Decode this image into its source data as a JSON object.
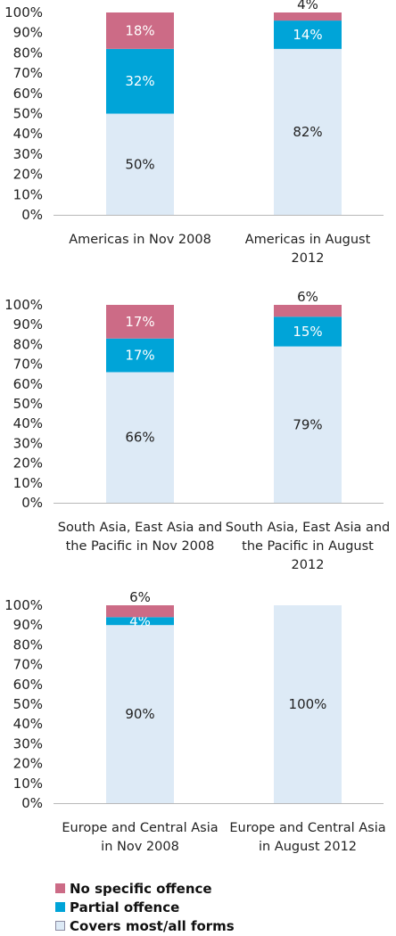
{
  "colors": {
    "no_specific": "#cc6b86",
    "partial": "#00a4d8",
    "covers": "#ddeaf6",
    "covers_border": "#8a8aa0",
    "label_dark": "#222222",
    "label_light": "#ffffff"
  },
  "legend": [
    {
      "label": "No specific offence",
      "color_key": "no_specific"
    },
    {
      "label": "Partial offence",
      "color_key": "partial"
    },
    {
      "label": "Covers most/all forms",
      "color_key": "covers"
    }
  ],
  "chart_data": [
    {
      "type": "bar",
      "stacked": true,
      "ylim": [
        0,
        100
      ],
      "yticks": [
        "0%",
        "10%",
        "20%",
        "30%",
        "40%",
        "50%",
        "60%",
        "70%",
        "80%",
        "90%",
        "100%"
      ],
      "categories": [
        [
          "Americas in Nov 2008"
        ],
        [
          "Americas in August",
          "2012"
        ]
      ],
      "series": [
        {
          "name": "Covers most/all forms",
          "color_key": "covers",
          "values": [
            50,
            82
          ],
          "labels": [
            "50%",
            "82%"
          ]
        },
        {
          "name": "Partial offence",
          "color_key": "partial",
          "values": [
            32,
            14
          ],
          "labels": [
            "32%",
            "14%"
          ]
        },
        {
          "name": "No specific offence",
          "color_key": "no_specific",
          "values": [
            18,
            4
          ],
          "labels": [
            "18%",
            "4%"
          ]
        }
      ]
    },
    {
      "type": "bar",
      "stacked": true,
      "ylim": [
        0,
        100
      ],
      "yticks": [
        "0%",
        "10%",
        "20%",
        "30%",
        "40%",
        "50%",
        "60%",
        "70%",
        "80%",
        "90%",
        "100%"
      ],
      "categories": [
        [
          "South Asia, East Asia and",
          "the Pacific in Nov 2008"
        ],
        [
          "South Asia, East Asia and",
          "the Pacific in August",
          "2012"
        ]
      ],
      "series": [
        {
          "name": "Covers most/all forms",
          "color_key": "covers",
          "values": [
            66,
            79
          ],
          "labels": [
            "66%",
            "79%"
          ]
        },
        {
          "name": "Partial offence",
          "color_key": "partial",
          "values": [
            17,
            15
          ],
          "labels": [
            "17%",
            "15%"
          ]
        },
        {
          "name": "No specific offence",
          "color_key": "no_specific",
          "values": [
            17,
            6
          ],
          "labels": [
            "17%",
            "6%"
          ]
        }
      ]
    },
    {
      "type": "bar",
      "stacked": true,
      "ylim": [
        0,
        100
      ],
      "yticks": [
        "0%",
        "10%",
        "20%",
        "30%",
        "40%",
        "50%",
        "60%",
        "70%",
        "80%",
        "90%",
        "100%"
      ],
      "categories": [
        [
          "Europe and Central Asia",
          "in Nov 2008"
        ],
        [
          "Europe and Central Asia",
          "in August 2012"
        ]
      ],
      "series": [
        {
          "name": "Covers most/all forms",
          "color_key": "covers",
          "values": [
            90,
            100
          ],
          "labels": [
            "90%",
            "100%"
          ]
        },
        {
          "name": "Partial offence",
          "color_key": "partial",
          "values": [
            4,
            0
          ],
          "labels": [
            "4%",
            ""
          ]
        },
        {
          "name": "No specific offence",
          "color_key": "no_specific",
          "values": [
            6,
            0
          ],
          "labels": [
            "6%",
            ""
          ]
        }
      ]
    }
  ]
}
